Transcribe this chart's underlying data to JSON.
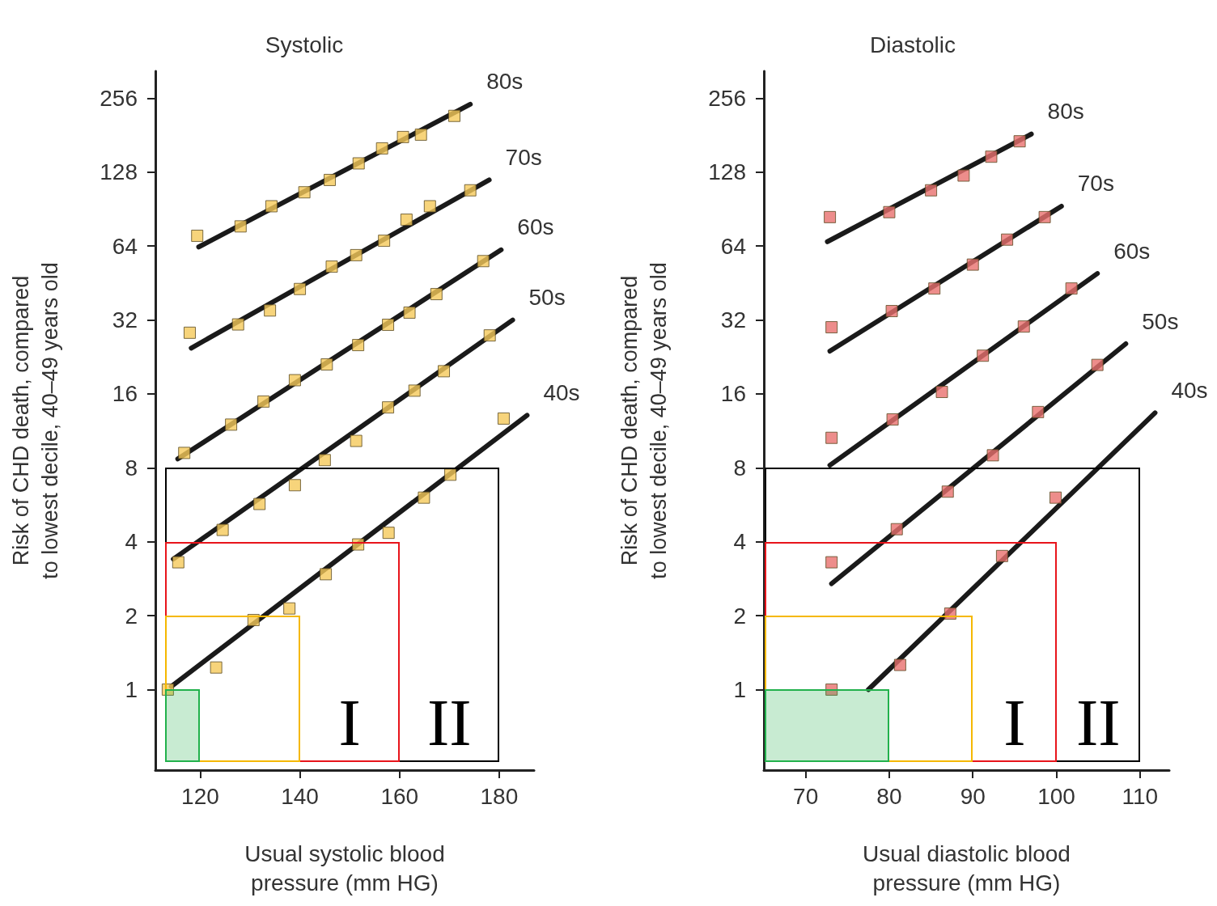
{
  "chart_data": [
    {
      "type": "scatter",
      "title": "Systolic",
      "xlabel": "Usual systolic blood\npressure (mm HG)",
      "ylabel": "Risk of CHD death, compared\nto lowest decile, 40–49 years old",
      "log": "y",
      "grid": false,
      "xlim": [
        111,
        187
      ],
      "xticks": [
        120,
        140,
        160,
        180
      ],
      "ylim": [
        0.47,
        330
      ],
      "yticks": [
        1,
        2,
        4,
        8,
        16,
        32,
        64,
        128,
        256
      ],
      "annotations": [
        "I",
        "II"
      ],
      "series": [
        {
          "type": "line",
          "name": "80s",
          "color": "#1a1a1a",
          "marker": "none",
          "x": [
            119.7,
            174.2
          ],
          "values": [
            63.5,
            242
          ]
        },
        {
          "type": "line",
          "name": "70s",
          "color": "#1a1a1a",
          "marker": "none",
          "x": [
            118.2,
            178
          ],
          "values": [
            24.6,
            119
          ]
        },
        {
          "type": "line",
          "name": "60s",
          "color": "#1a1a1a",
          "marker": "none",
          "x": [
            115.5,
            180.4
          ],
          "values": [
            8.7,
            61.8
          ]
        },
        {
          "type": "line",
          "name": "50s",
          "color": "#1a1a1a",
          "marker": "none",
          "x": [
            114.6,
            182.7
          ],
          "values": [
            3.4,
            32
          ]
        },
        {
          "type": "line",
          "name": "40s",
          "color": "#1a1a1a",
          "marker": "none",
          "x": [
            114.2,
            185.6
          ],
          "values": [
            1.03,
            13.1
          ]
        },
        {
          "type": "scatter",
          "color": "#f5c95a",
          "marker": "square",
          "x": [
            119.4,
            128.1,
            134.3,
            140.9,
            146,
            151.8,
            156.5,
            160.7,
            164.3,
            171
          ],
          "values": [
            70.5,
            77,
            93,
            106,
            119,
            139,
            160,
            178,
            182,
            217
          ]
        },
        {
          "type": "scatter",
          "color": "#f5c95a",
          "marker": "square",
          "x": [
            117.9,
            127.6,
            134,
            140,
            146.4,
            151.3,
            156.9,
            161.4,
            166.1,
            174.2
          ],
          "values": [
            28.4,
            30.7,
            35,
            42.8,
            52.8,
            58.8,
            67.3,
            82,
            93,
            108
          ]
        },
        {
          "type": "scatter",
          "color": "#f5c95a",
          "marker": "square",
          "x": [
            116.8,
            126.2,
            132.7,
            139,
            145.4,
            151.7,
            157.7,
            162,
            167.4,
            176.8
          ],
          "values": [
            9.2,
            12,
            14.9,
            18.2,
            21.1,
            25.3,
            30.6,
            34.3,
            40.8,
            55.6
          ]
        },
        {
          "type": "scatter",
          "color": "#f5c95a",
          "marker": "square",
          "x": [
            115.6,
            124.5,
            131.9,
            139,
            145,
            151.3,
            157.7,
            163,
            168.9,
            178.1
          ],
          "values": [
            3.3,
            4.47,
            5.7,
            6.8,
            8.6,
            10.3,
            14.1,
            16.5,
            19.8,
            27.7
          ]
        },
        {
          "type": "scatter",
          "color": "#f5c95a",
          "marker": "square",
          "x": [
            113.5,
            123.2,
            130.7,
            137.9,
            145.2,
            151.7,
            157.8,
            164.9,
            170.2,
            180.9
          ],
          "values": [
            1,
            1.23,
            1.92,
            2.14,
            2.95,
            3.9,
            4.35,
            6.05,
            7.5,
            12.7
          ]
        }
      ]
    },
    {
      "type": "scatter",
      "title": "Diastolic",
      "xlabel": "Usual diastolic blood\npressure (mm HG)",
      "ylabel": "Risk of CHD death, compared\nto lowest decile, 40–49 years old",
      "log": "y",
      "grid": false,
      "xlim": [
        65,
        113.5
      ],
      "xticks": [
        70,
        80,
        90,
        100,
        110
      ],
      "ylim": [
        0.47,
        330
      ],
      "yticks": [
        1,
        2,
        4,
        8,
        16,
        32,
        64,
        128,
        256
      ],
      "annotations": [
        "I",
        "II"
      ],
      "series": [
        {
          "type": "line",
          "name": "80s",
          "color": "#1a1a1a",
          "marker": "none",
          "x": [
            72.6,
            97
          ],
          "values": [
            66.7,
            183
          ]
        },
        {
          "type": "line",
          "name": "70s",
          "color": "#1a1a1a",
          "marker": "none",
          "x": [
            72.9,
            100.6
          ],
          "values": [
            23.9,
            93
          ]
        },
        {
          "type": "line",
          "name": "60s",
          "color": "#1a1a1a",
          "marker": "none",
          "x": [
            72.9,
            104.9
          ],
          "values": [
            8.2,
            49.5
          ]
        },
        {
          "type": "line",
          "name": "50s",
          "color": "#1a1a1a",
          "marker": "none",
          "x": [
            73.1,
            108.3
          ],
          "values": [
            2.7,
            25.6
          ]
        },
        {
          "type": "line",
          "name": "40s",
          "color": "#1a1a1a",
          "marker": "none",
          "x": [
            77.5,
            111.8
          ],
          "values": [
            1,
            13.4
          ]
        },
        {
          "type": "scatter",
          "color": "#e8706e",
          "marker": "square",
          "x": [
            72.9,
            80,
            85,
            88.9,
            92.2,
            95.6
          ],
          "values": [
            84,
            88,
            108,
            124,
            148,
            171
          ]
        },
        {
          "type": "scatter",
          "color": "#e8706e",
          "marker": "square",
          "x": [
            73.1,
            80.3,
            85.4,
            90,
            94.1,
            98.6
          ],
          "values": [
            29.9,
            34.8,
            43,
            53.8,
            68,
            84
          ]
        },
        {
          "type": "scatter",
          "color": "#e8706e",
          "marker": "square",
          "x": [
            73.1,
            80.4,
            86.3,
            91.2,
            96.1,
            101.8
          ],
          "values": [
            10.6,
            12.6,
            16.3,
            22.9,
            30.1,
            43
          ]
        },
        {
          "type": "scatter",
          "color": "#e8706e",
          "marker": "square",
          "x": [
            73.1,
            80.9,
            87,
            92.4,
            97.8,
            104.9
          ],
          "values": [
            3.3,
            4.5,
            6.4,
            9,
            13.5,
            21
          ]
        },
        {
          "type": "scatter",
          "color": "#e8706e",
          "marker": "square",
          "x": [
            73.1,
            81.3,
            87.3,
            93.5,
            99.9
          ],
          "values": [
            1,
            1.26,
            2.04,
            3.5,
            6.05
          ]
        }
      ]
    }
  ]
}
